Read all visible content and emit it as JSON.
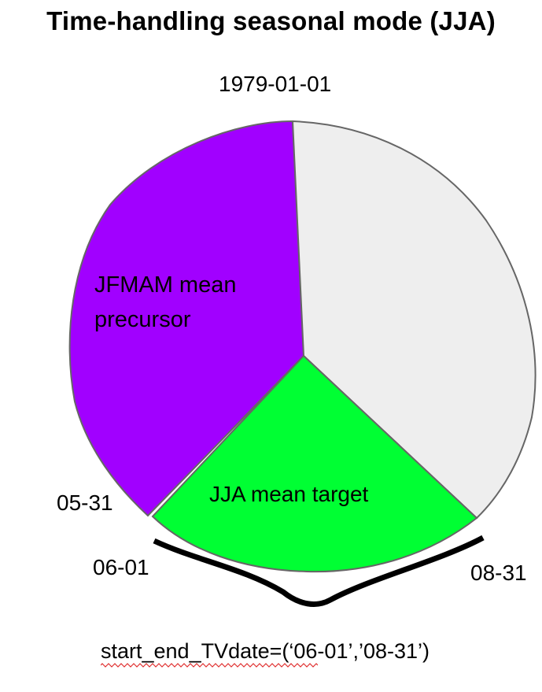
{
  "title": "Time-handling seasonal mode (JJA)",
  "segments": [
    {
      "id": "precursor",
      "label_lines": [
        "JFMAM mean",
        "precursor"
      ],
      "color": "#a100ff"
    },
    {
      "id": "target",
      "label_lines": [
        "JJA mean target"
      ],
      "color": "#00ff33"
    },
    {
      "id": "rest",
      "label_lines": [],
      "color": "#eeeeee"
    }
  ],
  "dates": {
    "start": "1979-01-01",
    "precursor_end": "05-31",
    "target_start": "06-01",
    "target_end": "08-31"
  },
  "caption": "start_end_TVdate=(‘06-01’,’08-31’)",
  "colors": {
    "outline": "#666666",
    "brace": "#000000",
    "spellcheck": "#e03030"
  }
}
